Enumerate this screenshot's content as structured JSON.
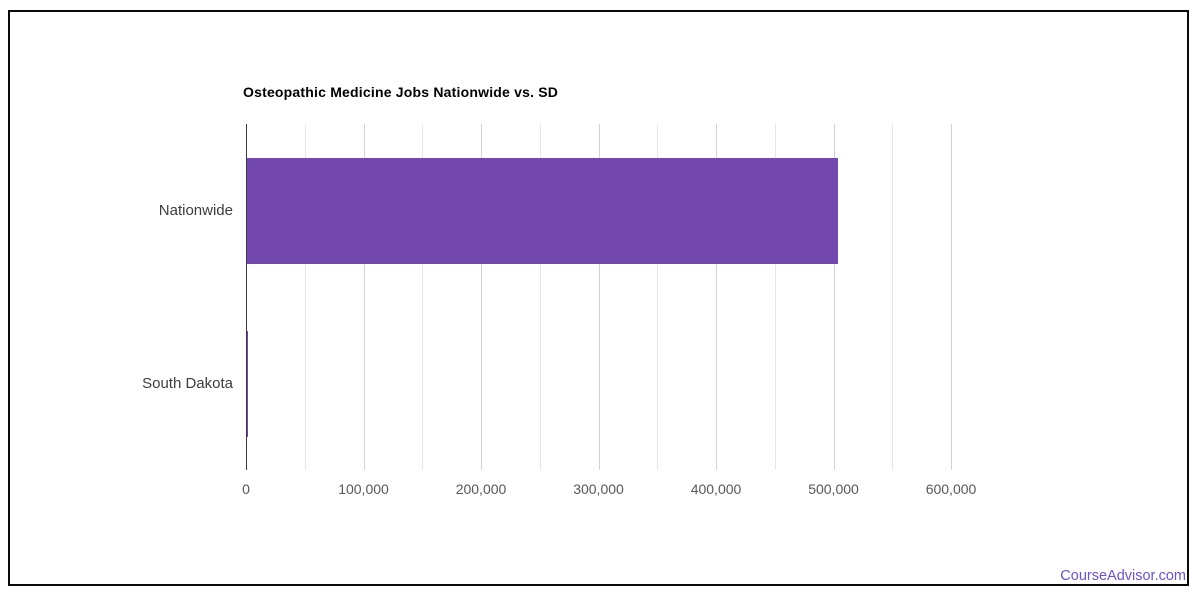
{
  "chart_data": {
    "type": "bar",
    "orientation": "horizontal",
    "title": "Osteopathic Medicine Jobs Nationwide vs. SD",
    "categories": [
      "Nationwide",
      "South Dakota"
    ],
    "values": [
      504000,
      2000
    ],
    "xlabel": "",
    "ylabel": "",
    "xlim": [
      0,
      650000
    ],
    "x_ticks": [
      0,
      100000,
      200000,
      300000,
      400000,
      500000,
      600000
    ],
    "x_tick_labels": [
      "0",
      "100,000",
      "200,000",
      "300,000",
      "400,000",
      "500,000",
      "600,000"
    ],
    "minor_grid_step": 50000,
    "grid_max": 600000,
    "grid": true,
    "legend": "none",
    "colors": {
      "bar": "#7248ae",
      "axis_line": "#3a3a3a",
      "major_gridline": "#d2d2d2",
      "minor_gridline": "#e6e6e6",
      "tick_text": "#575757",
      "category_text": "#3d3d3d",
      "title_text": "#000000",
      "frame_border": "#0a0a0a"
    }
  },
  "watermark": {
    "label": "CourseAdvisor.com",
    "color": "#6e52c8"
  }
}
